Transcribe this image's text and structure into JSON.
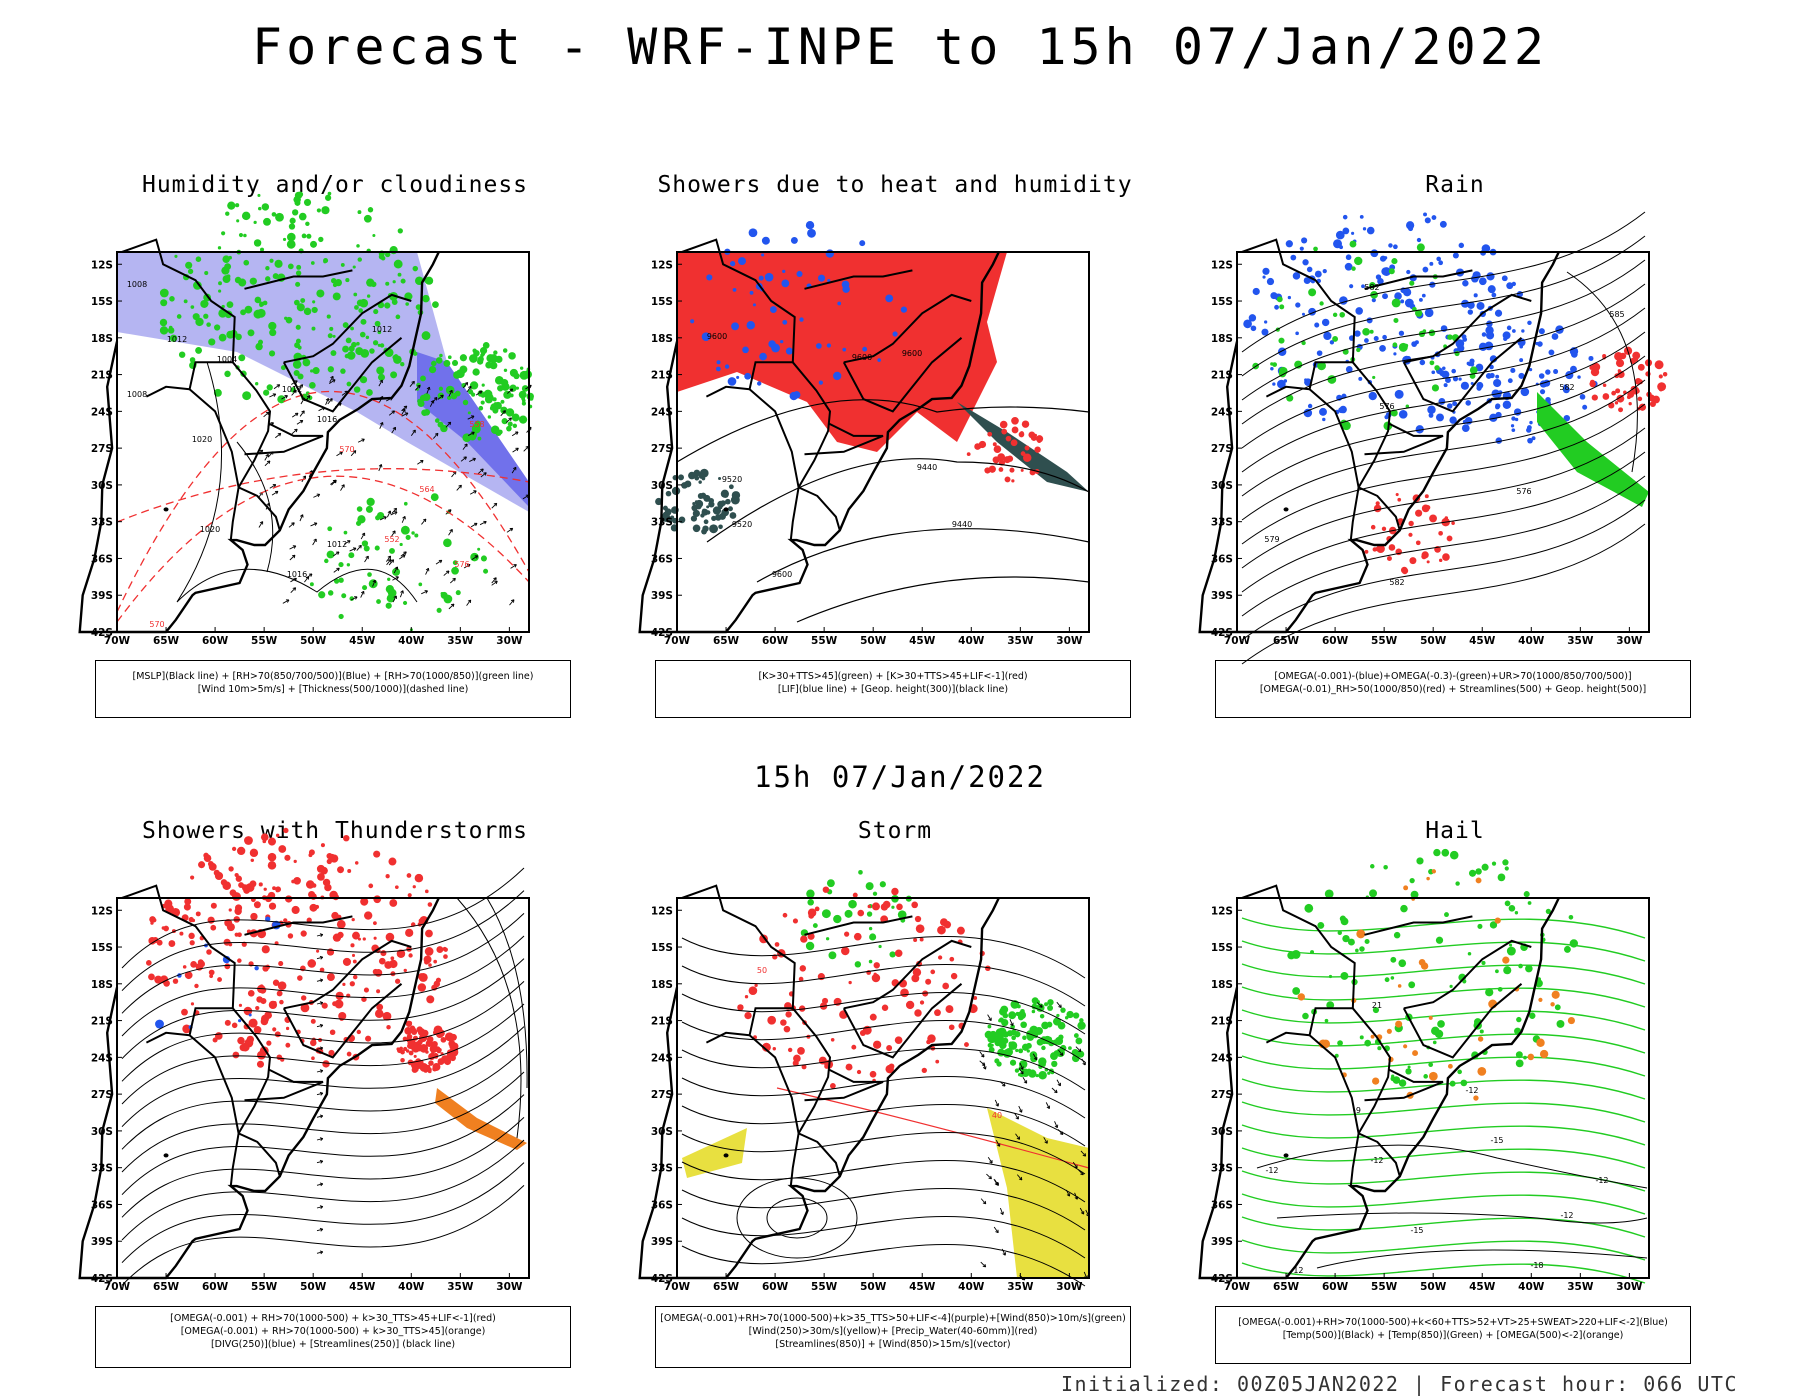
{
  "title": "Forecast - WRF-INPE to 15h 07/Jan/2022",
  "mid_title": "15h 07/Jan/2022",
  "footer": "Initialized: 00Z05JAN2022 | Forecast hour: 066 UTC",
  "lat_labels": [
    "12S",
    "15S",
    "18S",
    "21S",
    "24S",
    "27S",
    "30S",
    "33S",
    "36S",
    "39S",
    "42S"
  ],
  "lon_labels": [
    "70W",
    "65W",
    "60W",
    "55W",
    "50W",
    "45W",
    "40W",
    "35W",
    "30W"
  ],
  "panels": [
    {
      "id": "humidity",
      "title": "Humidity and/or cloudiness",
      "legend": [
        "[MSLP](Black line) + [RH>70(850/700/500)](Blue) + [RH>70(1000/850)](green line)",
        "[Wind 10m>5m/s] + [Thickness(500/1000)](dashed line)"
      ],
      "labels": [
        "1008",
        "1012",
        "1004",
        "1012",
        "1008",
        "1012",
        "1016",
        "1020",
        "1020",
        "1016",
        "1012",
        "576",
        "570",
        "564",
        "558",
        "552",
        "570"
      ]
    },
    {
      "id": "showers",
      "title": "Showers due to heat and humidity",
      "legend": [
        "[K>30+TTS>45](green) + [K>30+TTS>45+LIF<-1](red)",
        "[LIF](blue line) + [Geop. height(300)](black line)"
      ],
      "labels": [
        "9600",
        "9600",
        "9600",
        "9520",
        "9520",
        "9440",
        "9440",
        "9600"
      ]
    },
    {
      "id": "rain",
      "title": "Rain",
      "legend": [
        "[OMEGA(-0.001)-(blue)+OMEGA(-0.3)-(green)+UR>70(1000/850/700/500)]",
        "[OMEGA(-0.01)_RH>50(1000/850)(red) + Streamlines(500) + Geop. height(500)]"
      ],
      "labels": [
        "582",
        "585",
        "582",
        "576",
        "579",
        "576",
        "582"
      ]
    },
    {
      "id": "thunder",
      "title": "Showers with Thunderstorms",
      "legend": [
        "[OMEGA(-0.001) + RH>70(1000-500) + k>30_TTS>45+LIF<-1](red)",
        "[OMEGA(-0.001) + RH>70(1000-500) + k>30_TTS>45](orange)",
        "[DIVG(250)](blue) + [Streamlines(250)] (black line)"
      ],
      "labels": []
    },
    {
      "id": "storm",
      "title": "Storm",
      "legend": [
        "[OMEGA(-0.001)+RH>70(1000-500)+k>35_TTS>50+LIF<-4](purple)+[Wind(850)>10m/s](green)",
        "[Wind(250)>30m/s](yellow)+ [Precip_Water(40-60mm)](red)",
        "[Streamlines(850)] + [Wind(850)>15m/s](vector)"
      ],
      "labels": [
        "50",
        "40"
      ]
    },
    {
      "id": "hail",
      "title": "Hail",
      "legend": [
        "[OMEGA(-0.001)+RH>70(1000-500)+k<60+TTS>52+VT>25+SWEAT>220+LIF<-2](Blue)",
        "[Temp(500)](Black) + [Temp(850)](Green) + [OMEGA(500)<-2](orange)"
      ],
      "labels": [
        "-9",
        "-12",
        "-12",
        "-15",
        "-12",
        "-18",
        "-12",
        "-15",
        "-12",
        "-12",
        "21"
      ]
    }
  ],
  "colors": {
    "frame": "#000000",
    "green": "#22cc22",
    "blue": "#2255ee",
    "lightblue": "#a8a8f0",
    "red": "#f03030",
    "darkteal": "#2f4f4f",
    "orange": "#f08020",
    "yellow": "#e8e040",
    "purple": "#cc33cc"
  }
}
